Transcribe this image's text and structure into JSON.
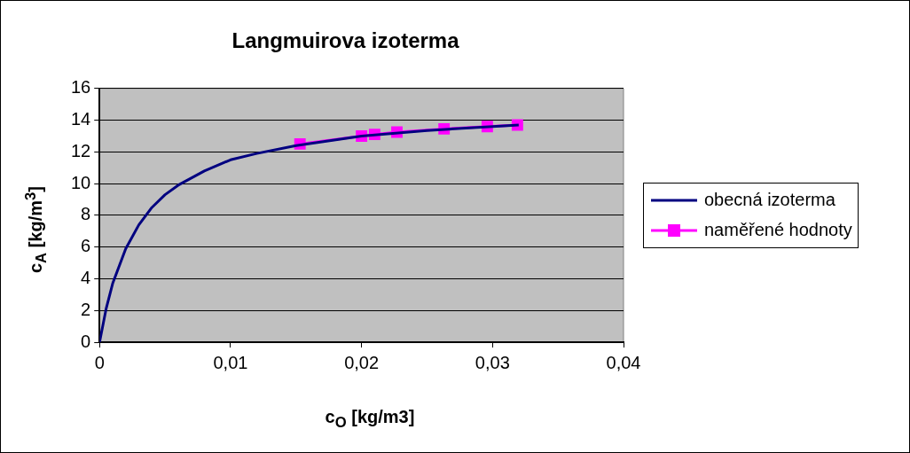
{
  "chart_data": {
    "type": "line",
    "title": "Langmuirova izoterma",
    "xlabel": "c$_{O}$ [kg/m3]",
    "ylabel": "c$_{A}$ [kg/m$^{3}$]",
    "series": [
      {
        "name": "obecná izoterma",
        "color": "#000080",
        "marker": "none",
        "x": [
          0,
          0.0005,
          0.001,
          0.002,
          0.003,
          0.004,
          0.005,
          0.006,
          0.008,
          0.01,
          0.012,
          0.015,
          0.02,
          0.025,
          0.03,
          0.032
        ],
        "values": [
          0,
          2.1,
          3.7,
          5.9,
          7.4,
          8.5,
          9.3,
          9.9,
          10.8,
          11.5,
          11.9,
          12.4,
          13,
          13.35,
          13.6,
          13.7
        ]
      },
      {
        "name": "naměřené hodnoty",
        "color": "#ff00ff",
        "marker": "square",
        "x": [
          0.0153,
          0.02,
          0.021,
          0.0227,
          0.0263,
          0.0296,
          0.0319
        ],
        "values": [
          12.5,
          13,
          13.1,
          13.25,
          13.45,
          13.6,
          13.7
        ]
      }
    ],
    "xlim": [
      0,
      0.04
    ],
    "xticks": [
      0,
      {
        "value": 0.01,
        "label": "0,01"
      },
      {
        "value": 0.02,
        "label": "0,02"
      },
      {
        "value": 0.03,
        "label": "0,03"
      },
      {
        "value": 0.04,
        "label": "0,04"
      }
    ],
    "ylim": [
      0,
      16
    ],
    "yticks": [
      0,
      2,
      4,
      6,
      8,
      10,
      12,
      14,
      16
    ],
    "grid": "y",
    "legend": "right",
    "line_style": "solid"
  }
}
